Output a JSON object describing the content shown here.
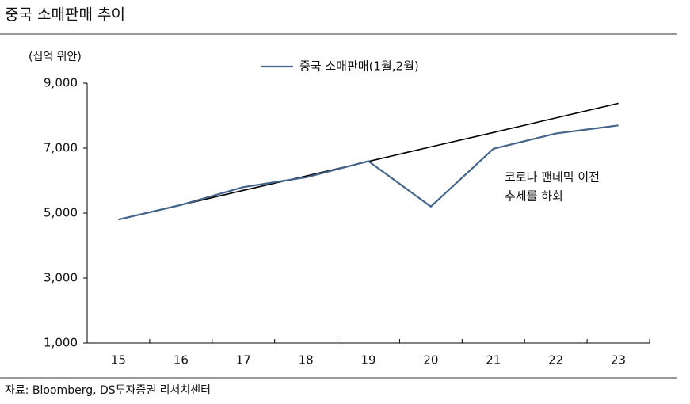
{
  "chart_data": {
    "type": "line",
    "title": "중국 소매판매 추이",
    "y_unit": "(십억 위안)",
    "categories": [
      "15",
      "16",
      "17",
      "18",
      "19",
      "20",
      "21",
      "22",
      "23"
    ],
    "series": [
      {
        "name": "중국 소매판매(1월,2월)",
        "color": "#44648a",
        "values": [
          4800,
          5250,
          5800,
          6100,
          6600,
          5200,
          6980,
          7450,
          7700
        ]
      },
      {
        "color": "#000000",
        "values": [
          4800,
          5250,
          5700,
          6140,
          6590,
          7040,
          7480,
          7930,
          8380
        ]
      }
    ],
    "ylim": [
      1000,
      9000
    ],
    "yticks": [
      {
        "value": 1000,
        "label": "1,000"
      },
      {
        "value": 3000,
        "label": "3,000"
      },
      {
        "value": 5000,
        "label": "5,000"
      },
      {
        "value": 7000,
        "label": "7,000"
      },
      {
        "value": 9000,
        "label": "9,000"
      }
    ],
    "annotation": [
      "코로나 팬데믹 이전",
      "추세를 하회"
    ],
    "source": "자료: Bloomberg, DS투자증권 리서치센터"
  }
}
